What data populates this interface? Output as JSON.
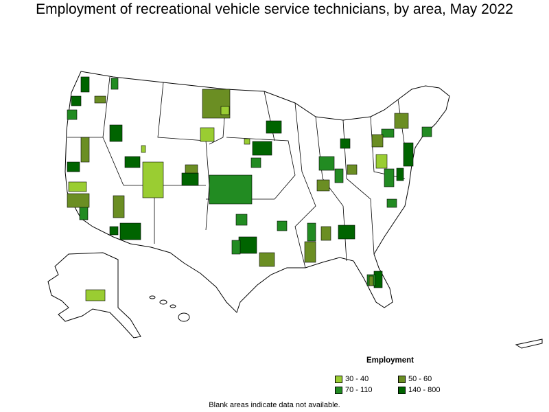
{
  "title": "Employment of recreational vehicle service technicians, by area, May 2022",
  "legend": {
    "title": "Employment",
    "items": [
      {
        "label": "30 - 40",
        "color": "#9acd32"
      },
      {
        "label": "50 - 60",
        "color": "#6b8e23"
      },
      {
        "label": "70 - 110",
        "color": "#228b22"
      },
      {
        "label": "140 - 800",
        "color": "#006400"
      }
    ]
  },
  "footnote": "Blank areas indicate data not available."
}
